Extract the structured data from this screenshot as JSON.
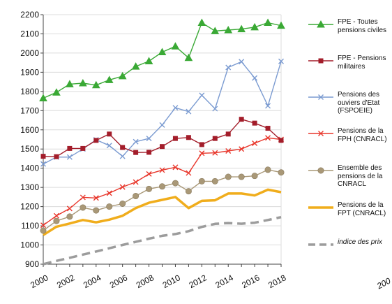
{
  "chart_data": {
    "type": "line",
    "title": "",
    "xlabel": "",
    "ylabel": "",
    "xlim": [
      2000,
      2018
    ],
    "ylim": [
      900,
      2200
    ],
    "yticks": [
      900,
      1000,
      1100,
      1200,
      1300,
      1400,
      1500,
      1600,
      1700,
      1800,
      1900,
      2000,
      2100,
      2200
    ],
    "xtick_labels": [
      "2000",
      "2002",
      "2004",
      "2006",
      "2008",
      "2010",
      "2012",
      "2014",
      "2016",
      "2018"
    ],
    "grid": true,
    "legend_position": "right",
    "extra_label": "200",
    "x": [
      2000,
      2001,
      2002,
      2003,
      2004,
      2005,
      2006,
      2007,
      2008,
      2009,
      2010,
      2011,
      2012,
      2013,
      2014,
      2015,
      2016,
      2017,
      2018
    ],
    "series": [
      {
        "name": "FPE - Toutes pensions civiles",
        "color": "#3aa935",
        "marker": "triangle",
        "style": "solid",
        "values": [
          1765,
          1795,
          1838,
          1843,
          1833,
          1860,
          1880,
          1930,
          1958,
          2005,
          2035,
          1975,
          2158,
          2115,
          2120,
          2125,
          2135,
          2158,
          2143
        ]
      },
      {
        "name": "FPE - Pensions militaires",
        "color": "#a31d2a",
        "marker": "square",
        "style": "solid",
        "values": [
          1462,
          1460,
          1503,
          1503,
          1545,
          1578,
          1508,
          1482,
          1483,
          1513,
          1555,
          1560,
          1523,
          1555,
          1578,
          1655,
          1635,
          1608,
          1545
        ]
      },
      {
        "name": "Pensions des ouviers d'Etat (FSPOEIE)",
        "color": "#7b9bd1",
        "marker": "x",
        "style": "solid",
        "values": [
          1422,
          1458,
          1458,
          1500,
          1548,
          1518,
          1462,
          1538,
          1555,
          1625,
          1715,
          1695,
          1780,
          1710,
          1925,
          1955,
          1870,
          1725,
          1957
        ]
      },
      {
        "name": "Pensions de la FPH (CNRACL)",
        "color": "#e8362b",
        "marker": "x",
        "style": "solid",
        "values": [
          1103,
          1152,
          1190,
          1248,
          1245,
          1270,
          1302,
          1328,
          1370,
          1390,
          1405,
          1375,
          1478,
          1480,
          1490,
          1500,
          1530,
          1558,
          1550
        ]
      },
      {
        "name": "Ensemble des pensions de la CNRACL",
        "color": "#a99877",
        "marker": "circle",
        "style": "solid",
        "values": [
          1075,
          1125,
          1148,
          1195,
          1180,
          1200,
          1215,
          1255,
          1292,
          1305,
          1322,
          1280,
          1332,
          1332,
          1355,
          1355,
          1360,
          1392,
          1378
        ]
      },
      {
        "name": "Pensions de la FPT (CNRACL)",
        "color": "#f0ad1c",
        "marker": "none",
        "style": "thick",
        "values": [
          1052,
          1095,
          1112,
          1130,
          1118,
          1132,
          1152,
          1192,
          1220,
          1235,
          1250,
          1192,
          1230,
          1233,
          1268,
          1268,
          1258,
          1288,
          1275
        ]
      },
      {
        "name": "indice des prix",
        "color": "#9c9c9c",
        "marker": "none",
        "style": "dashed",
        "values": [
          900,
          917,
          933,
          950,
          966,
          983,
          1000,
          1016,
          1033,
          1048,
          1057,
          1072,
          1094,
          1110,
          1114,
          1111,
          1116,
          1130,
          1145
        ]
      }
    ]
  }
}
